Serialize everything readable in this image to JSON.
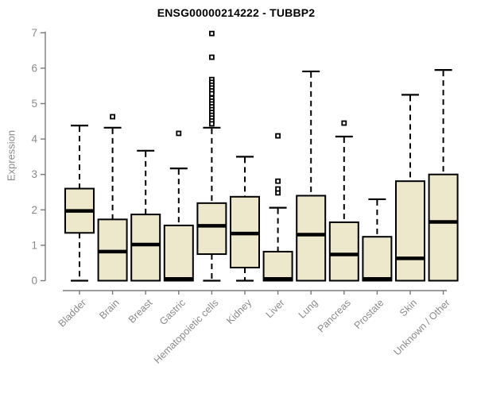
{
  "title": "ENSG00000214222 - TUBBP2",
  "chart_data": {
    "type": "boxplot",
    "title": "ENSG00000214222 - TUBBP2",
    "xlabel": "",
    "ylabel": "Expression",
    "ylim": [
      0,
      7
    ],
    "yticks": [
      0,
      1,
      2,
      3,
      4,
      5,
      6,
      7
    ],
    "grid": false,
    "legend": "none",
    "outlier_marker": "open-square",
    "whisker_style": "dashed",
    "categories": [
      "Bladder",
      "Brain",
      "Breast",
      "Gastric",
      "Hematopoietic cells",
      "Kidney",
      "Liver",
      "Lung",
      "Pancreas",
      "Prostate",
      "Skin",
      "Unknown / Other"
    ],
    "series": [
      {
        "label": "Bladder",
        "min": 0,
        "q1": 1.35,
        "median": 1.97,
        "q3": 2.6,
        "max": 4.38,
        "outliers": []
      },
      {
        "label": "Brain",
        "min": 0,
        "q1": 0,
        "median": 0.82,
        "q3": 1.73,
        "max": 4.32,
        "outliers": [
          4.63
        ]
      },
      {
        "label": "Breast",
        "min": 0,
        "q1": 0,
        "median": 1.02,
        "q3": 1.87,
        "max": 3.67,
        "outliers": []
      },
      {
        "label": "Gastric",
        "min": 0,
        "q1": 0,
        "median": 0.05,
        "q3": 1.56,
        "max": 3.17,
        "outliers": [
          4.16
        ]
      },
      {
        "label": "Hematopoietic cells",
        "min": 0,
        "q1": 0.75,
        "median": 1.55,
        "q3": 2.19,
        "max": 4.32,
        "outliers": [
          6.98,
          6.31,
          5.68,
          5.6,
          5.52,
          5.44,
          5.36,
          5.28,
          5.15,
          5.07,
          4.99,
          4.91,
          4.83,
          4.75,
          4.67,
          4.59,
          4.51,
          4.43
        ]
      },
      {
        "label": "Kidney",
        "min": 0,
        "q1": 0.37,
        "median": 1.33,
        "q3": 2.37,
        "max": 3.5,
        "outliers": []
      },
      {
        "label": "Liver",
        "min": 0,
        "q1": 0,
        "median": 0.05,
        "q3": 0.82,
        "max": 2.06,
        "outliers": [
          2.48,
          2.59,
          2.81,
          4.09
        ]
      },
      {
        "label": "Lung",
        "min": 0,
        "q1": 0,
        "median": 1.3,
        "q3": 2.4,
        "max": 5.91,
        "outliers": []
      },
      {
        "label": "Pancreas",
        "min": 0,
        "q1": 0,
        "median": 0.74,
        "q3": 1.65,
        "max": 4.07,
        "outliers": [
          4.45
        ]
      },
      {
        "label": "Prostate",
        "min": 0,
        "q1": 0,
        "median": 0.05,
        "q3": 1.24,
        "max": 2.3,
        "outliers": []
      },
      {
        "label": "Skin",
        "min": 0,
        "q1": 0,
        "median": 0.63,
        "q3": 2.81,
        "max": 5.25,
        "outliers": []
      },
      {
        "label": "Unknown / Other",
        "min": 0,
        "q1": 0,
        "median": 1.66,
        "q3": 3.0,
        "max": 5.95,
        "outliers": []
      }
    ],
    "colors": {
      "box_fill": "#EDE7CB",
      "box_border": "#000000",
      "median": "#000000",
      "whisker": "#000000",
      "axis": "#7a7a7a",
      "tick_text": "#8a8a8a",
      "title_text": "#000000",
      "background": "#FFFFFF"
    }
  }
}
